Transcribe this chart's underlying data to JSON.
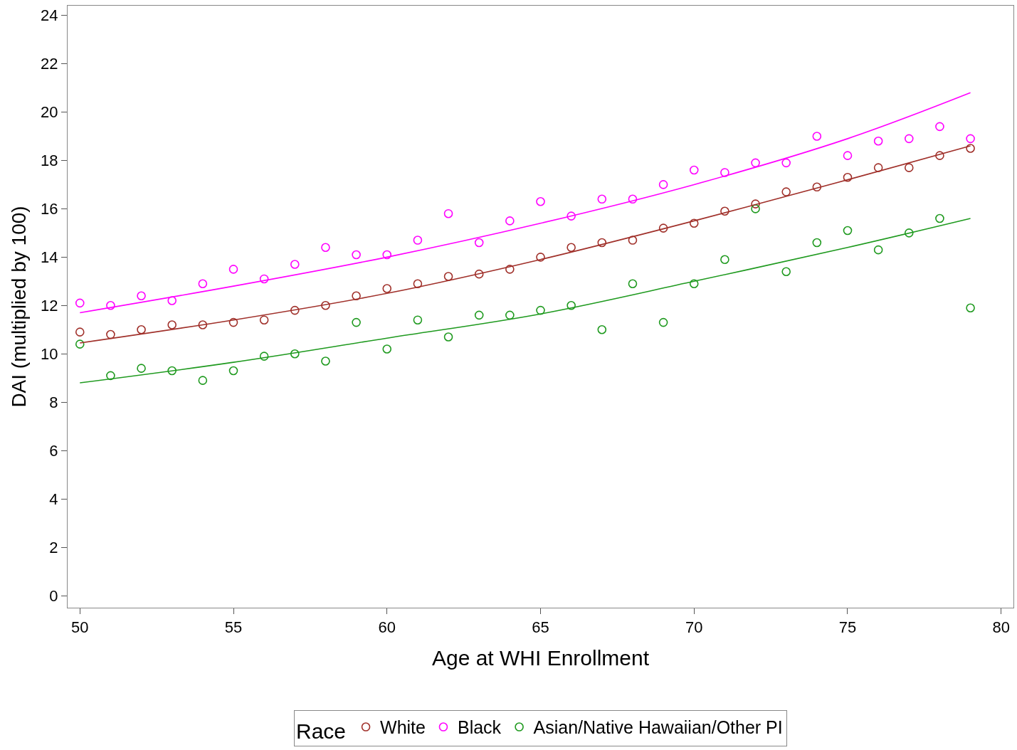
{
  "chart_data": {
    "type": "scatter",
    "xlabel": "Age at WHI Enrollment",
    "ylabel": "DAI (multiplied by 100)",
    "legend_title": "Race",
    "x": [
      50,
      51,
      52,
      53,
      54,
      55,
      56,
      57,
      58,
      59,
      60,
      61,
      62,
      63,
      64,
      65,
      66,
      67,
      68,
      69,
      70,
      71,
      72,
      73,
      74,
      75,
      76,
      77,
      78,
      79
    ],
    "xlim": [
      49.6,
      80.4
    ],
    "xticks": [
      50,
      55,
      60,
      65,
      70,
      75,
      80
    ],
    "ylim": [
      -0.5,
      24.4
    ],
    "yticks": [
      0,
      2,
      4,
      6,
      8,
      10,
      12,
      14,
      16,
      18,
      20,
      22,
      24
    ],
    "grid": false,
    "legend": "bottom",
    "marker": "circle",
    "series": [
      {
        "name": "White",
        "color": "#a0302a",
        "values": [
          10.9,
          10.8,
          11.0,
          11.2,
          11.2,
          11.3,
          11.4,
          11.8,
          12.0,
          12.4,
          12.7,
          12.9,
          13.2,
          13.3,
          13.5,
          14.0,
          14.4,
          14.6,
          14.7,
          15.2,
          15.4,
          15.9,
          16.2,
          16.7,
          16.9,
          17.3,
          17.7,
          17.7,
          18.2,
          18.5
        ]
      },
      {
        "name": "Black",
        "color": "#ff00ff",
        "values": [
          12.1,
          12.0,
          12.4,
          12.2,
          12.9,
          13.5,
          13.1,
          13.7,
          14.4,
          14.1,
          14.1,
          14.7,
          15.8,
          14.6,
          15.5,
          16.3,
          15.7,
          16.4,
          16.4,
          17.0,
          17.6,
          17.5,
          17.9,
          17.9,
          19.0,
          18.2,
          18.8,
          18.9,
          19.4,
          18.9
        ]
      },
      {
        "name": "Asian/Native Hawaiian/Other PI",
        "color": "#1f9a1f",
        "values": [
          10.4,
          9.1,
          9.4,
          9.3,
          8.9,
          9.3,
          9.9,
          10.0,
          9.7,
          11.3,
          10.2,
          11.4,
          10.7,
          11.6,
          11.6,
          11.8,
          12.0,
          11.0,
          12.9,
          11.3,
          12.9,
          13.9,
          16.0,
          13.4,
          14.6,
          15.1,
          14.3,
          15.0,
          15.6,
          11.9
        ]
      },
      {
        "type": "line",
        "marker": "none",
        "color": "#a0302a",
        "x": [
          50,
          55,
          60,
          65,
          70,
          75,
          79
        ],
        "values": [
          10.45,
          11.4,
          12.5,
          13.9,
          15.5,
          17.2,
          18.6
        ]
      },
      {
        "type": "line",
        "marker": "none",
        "color": "#ff00ff",
        "x": [
          50,
          55,
          60,
          65,
          70,
          75,
          79
        ],
        "values": [
          11.7,
          12.8,
          14.0,
          15.4,
          17.0,
          18.9,
          20.8
        ]
      },
      {
        "type": "line",
        "marker": "none",
        "color": "#1f9a1f",
        "x": [
          50,
          55,
          60,
          65,
          70,
          75,
          79
        ],
        "values": [
          8.8,
          9.65,
          10.65,
          11.65,
          13.0,
          14.4,
          15.6
        ]
      }
    ]
  }
}
